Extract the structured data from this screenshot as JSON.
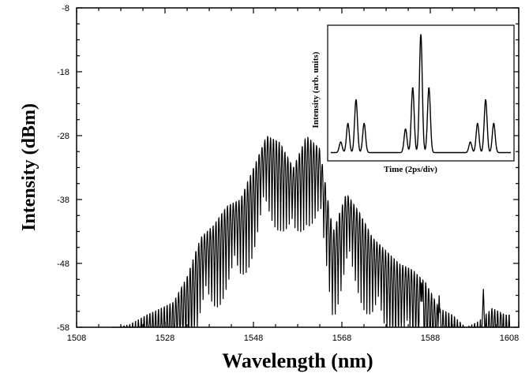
{
  "chart_data": [
    {
      "type": "line",
      "title": "",
      "xlabel": "Wavelength (nm)",
      "ylabel": "Intensity (dBm)",
      "xlim": [
        1508,
        1608
      ],
      "ylim": [
        -58,
        -8
      ],
      "xticks": [
        "1508",
        "1528",
        "1548",
        "1568",
        "1588",
        "1608"
      ],
      "yticks": [
        "-8",
        "-18",
        "-28",
        "-38",
        "-48",
        "-58"
      ],
      "grid": false,
      "series": [
        {
          "description_free": true,
          "x": [
            1517,
            1520,
            1524,
            1527,
            1530,
            1533,
            1536,
            1539,
            1542,
            1545,
            1548,
            1551,
            1554,
            1557,
            1560,
            1563,
            1566,
            1569,
            1572,
            1575,
            1578,
            1581,
            1584,
            1587,
            1590,
            1593,
            1596,
            1599,
            1602,
            1605
          ],
          "y": [
            -58,
            -57.5,
            -56,
            -55,
            -54,
            -50,
            -44,
            -42,
            -39,
            -38,
            -33,
            -28,
            -29,
            -33,
            -28,
            -30,
            -43,
            -37,
            -40,
            -44,
            -46,
            -48,
            -49,
            -51,
            -55,
            -56,
            -58,
            -57,
            -55,
            -56
          ]
        }
      ],
      "peaks": [
        {
          "x": 1586,
          "y": -51
        },
        {
          "x": 1590,
          "y": -53
        },
        {
          "x": 1600,
          "y": -52
        },
        {
          "x": 1604,
          "y": -56
        }
      ],
      "color": "#000000"
    },
    {
      "type": "line",
      "title": "",
      "xlabel": "Time (2ps/div)",
      "ylabel": "Intensity (arb. units)",
      "series": [
        {
          "x": [
            0,
            1,
            2,
            3,
            4,
            5,
            6,
            7,
            8,
            9,
            10
          ],
          "y": [
            0.05,
            0.45,
            0.05,
            0.05,
            0.55,
            1.0,
            0.55,
            0.05,
            0.05,
            0.45,
            0.05
          ]
        }
      ]
    }
  ]
}
